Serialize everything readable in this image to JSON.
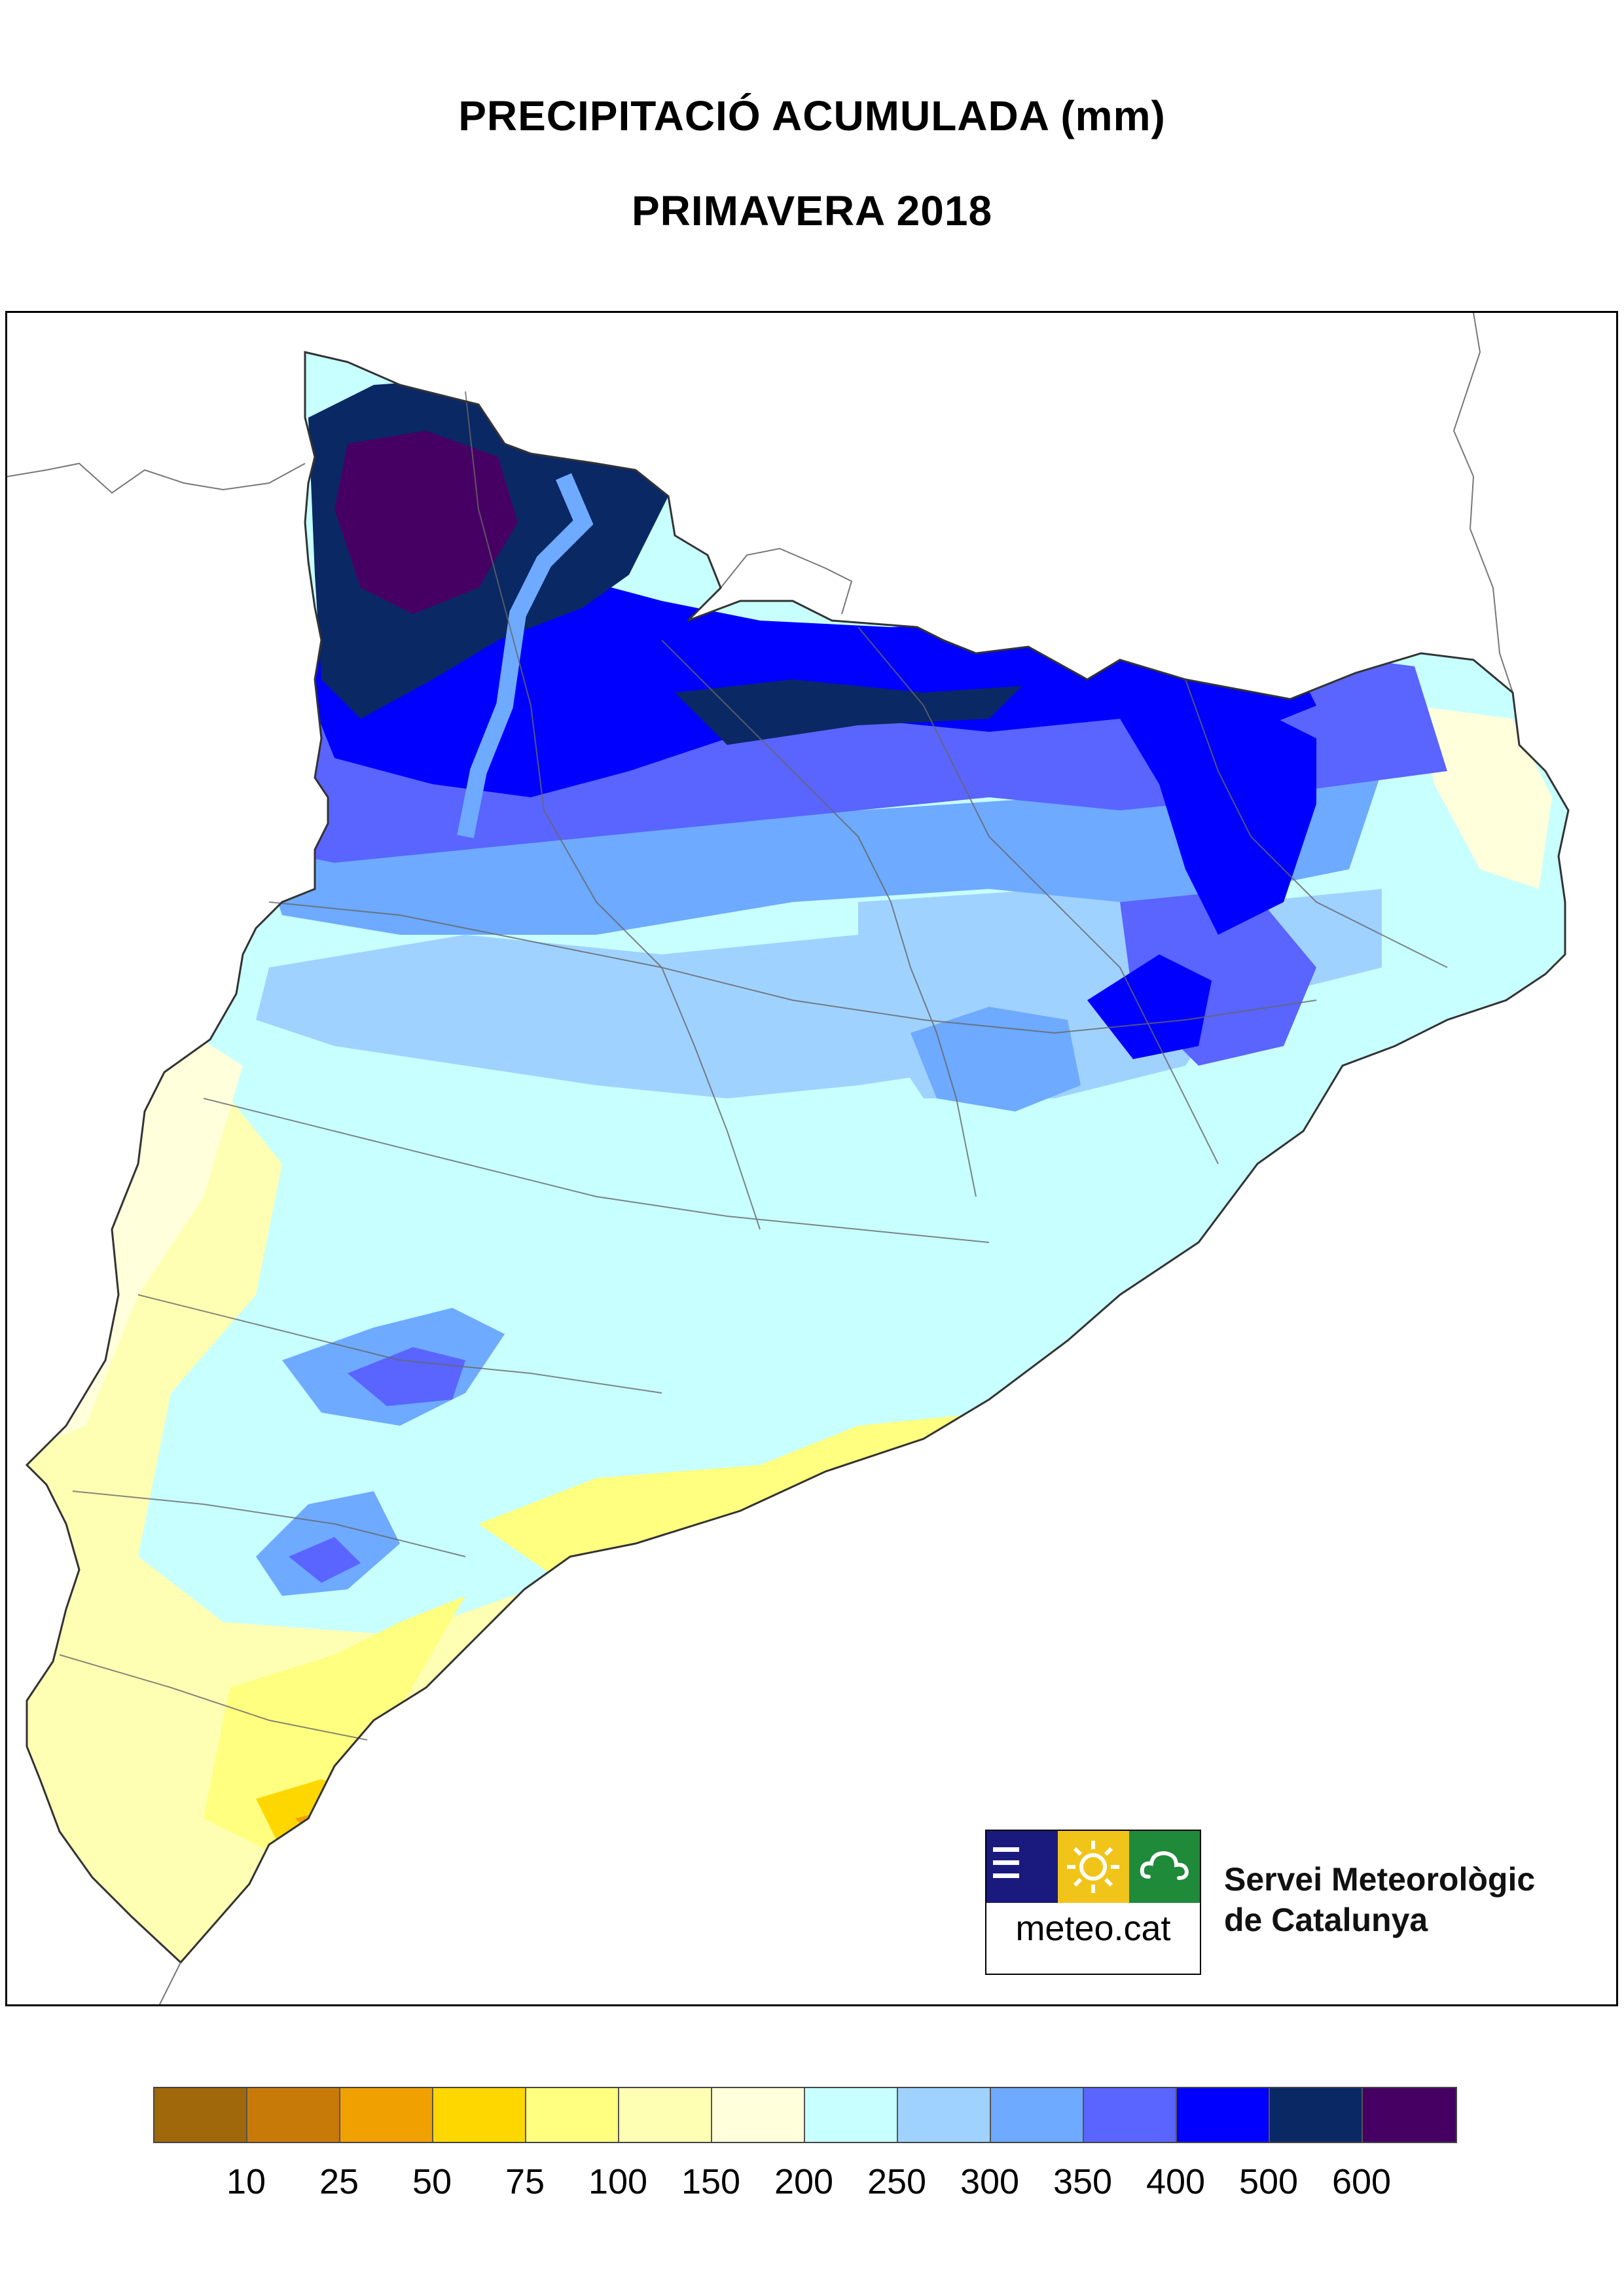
{
  "title": "PRECIPITACIÓ ACUMULADA (mm)",
  "subtitle": "PRIMAVERA 2018",
  "logo": {
    "wordmark": "meteo.cat",
    "colors": [
      "#1a1a7e",
      "#f0c419",
      "#1e8a3a"
    ],
    "icons": [
      "lines-icon",
      "sun-icon",
      "cloud-icon"
    ]
  },
  "agency": {
    "line1": "Servei Meteorològic",
    "line2": "de Catalunya"
  },
  "legend": {
    "colors": [
      "#a0680a",
      "#c87a08",
      "#f0a000",
      "#ffd700",
      "#ffff80",
      "#ffffb4",
      "#ffffdc",
      "#c8ffff",
      "#a0d2ff",
      "#6eaaff",
      "#5a64ff",
      "#0000ff",
      "#0a2864",
      "#460064"
    ],
    "labels": [
      "10",
      "25",
      "50",
      "75",
      "100",
      "150",
      "200",
      "250",
      "300",
      "350",
      "400",
      "500",
      "600"
    ]
  }
}
